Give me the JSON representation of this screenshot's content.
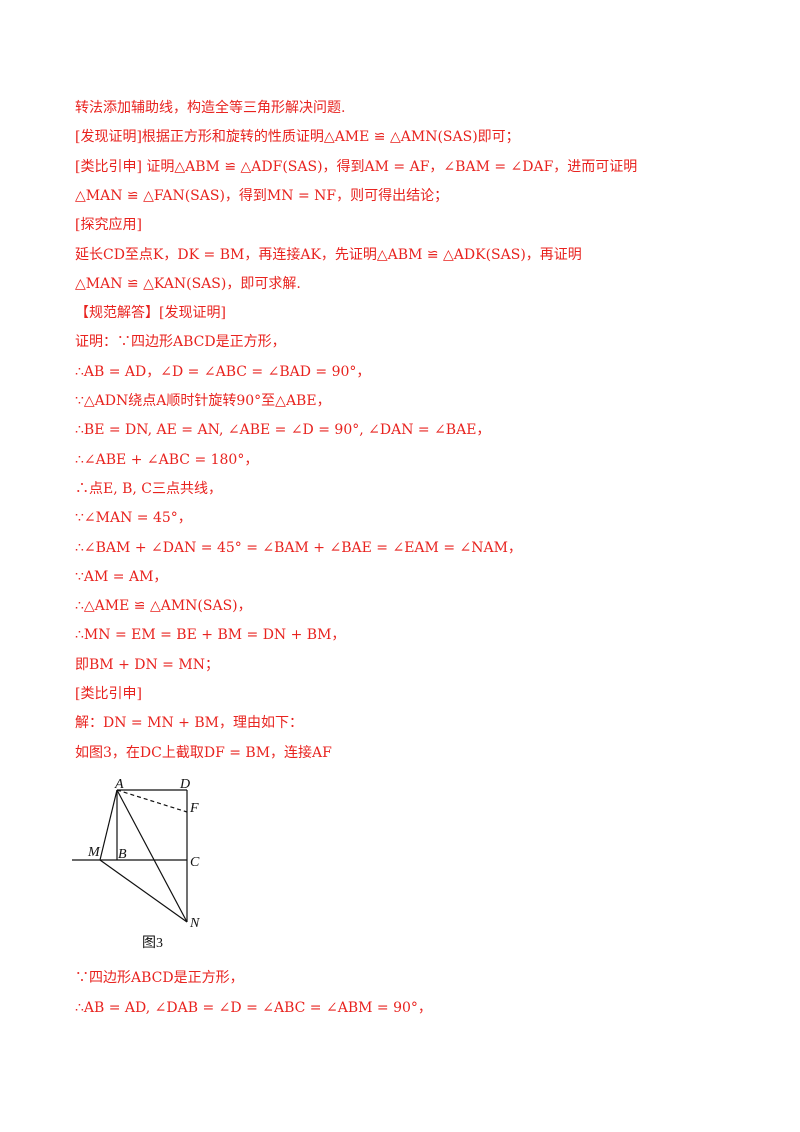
{
  "lines_top": [
    "转法添加辅助线，构造全等三角形解决问题.",
    "[发现证明]根据正方形和旋转的性质证明△AME ≌ △AMN(SAS)即可；",
    "[类比引申] 证明△ABM ≌ △ADF(SAS)，得到AM = AF，∠BAM = ∠DAF，进而可证明",
    "△MAN ≌ △FAN(SAS)，得到MN = NF，则可得出结论；",
    "[探究应用]",
    "延长CD至点K，DK = BM，再连接AK，先证明△ABM ≌ △ADK(SAS)，再证明",
    "△MAN ≌ △KAN(SAS)，即可求解.",
    "【规范解答】[发现证明]",
    "证明：∵四边形ABCD是正方形，",
    "∴AB = AD，∠D = ∠ABC = ∠BAD = 90°，",
    "∵△ADN绕点A顺时针旋转90°至△ABE，",
    "∴BE = DN, AE = AN, ∠ABE = ∠D = 90°, ∠DAN = ∠BAE，",
    "∴∠ABE + ∠ABC = 180°，",
    "∴点E, B, C三点共线，",
    "∵∠MAN = 45°，",
    "∴∠BAM + ∠DAN = 45° = ∠BAM + ∠BAE = ∠EAM = ∠NAM，",
    "∵AM = AM，",
    "∴△AME ≌ △AMN(SAS)，",
    "∴MN = EM = BE + BM = DN + BM，",
    "即BM + DN = MN；",
    "[类比引申]",
    "解：DN = MN + BM，理由如下：",
    "如图3，在DC上截取DF = BM，连接AF"
  ],
  "figure": {
    "labels": [
      "A",
      "D",
      "F",
      "M",
      "B",
      "C",
      "N"
    ],
    "caption": "图3"
  },
  "lines_bottom": [
    "∵四边形ABCD是正方形，",
    "∴AB = AD, ∠DAB = ∠D = ∠ABC = ∠ABM = 90°，"
  ]
}
